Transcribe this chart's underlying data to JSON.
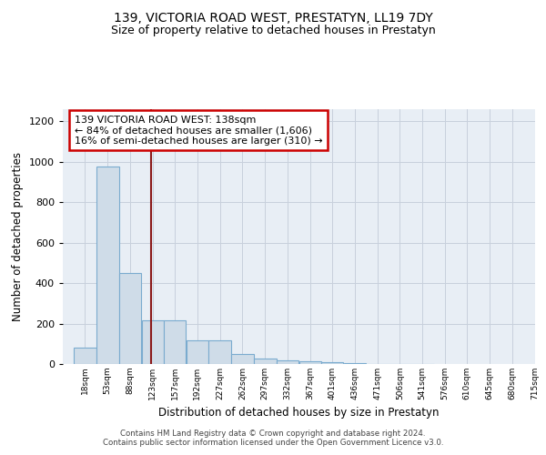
{
  "title1": "139, VICTORIA ROAD WEST, PRESTATYN, LL19 7DY",
  "title2": "Size of property relative to detached houses in Prestatyn",
  "xlabel": "Distribution of detached houses by size in Prestatyn",
  "ylabel": "Number of detached properties",
  "bin_labels": [
    "18sqm",
    "53sqm",
    "88sqm",
    "123sqm",
    "157sqm",
    "192sqm",
    "227sqm",
    "262sqm",
    "297sqm",
    "332sqm",
    "367sqm",
    "401sqm",
    "436sqm",
    "471sqm",
    "506sqm",
    "541sqm",
    "576sqm",
    "610sqm",
    "645sqm",
    "680sqm",
    "715sqm"
  ],
  "bin_edges": [
    18,
    53,
    88,
    123,
    157,
    192,
    227,
    262,
    297,
    332,
    367,
    401,
    436,
    471,
    506,
    541,
    576,
    610,
    645,
    680,
    715
  ],
  "bar_heights": [
    80,
    975,
    450,
    215,
    215,
    115,
    115,
    50,
    25,
    20,
    15,
    10,
    3,
    2,
    1,
    1,
    0,
    0,
    0,
    0
  ],
  "bar_color": "#cfdce8",
  "bar_edge_color": "#7aabcf",
  "vline_x": 138,
  "vline_color": "#8b1a1a",
  "annotation_text": "139 VICTORIA ROAD WEST: 138sqm\n← 84% of detached houses are smaller (1,606)\n16% of semi-detached houses are larger (310) →",
  "annotation_box_color": "white",
  "annotation_box_edge": "#cc0000",
  "ylim": [
    0,
    1260
  ],
  "yticks": [
    0,
    200,
    400,
    600,
    800,
    1000,
    1200
  ],
  "bg_color": "#e8eef5",
  "grid_color": "#c8d0dc",
  "footer_text": "Contains HM Land Registry data © Crown copyright and database right 2024.\nContains public sector information licensed under the Open Government Licence v3.0.",
  "title1_fontsize": 10,
  "title2_fontsize": 9,
  "xlabel_fontsize": 8.5,
  "ylabel_fontsize": 8.5,
  "annot_fontsize": 8
}
